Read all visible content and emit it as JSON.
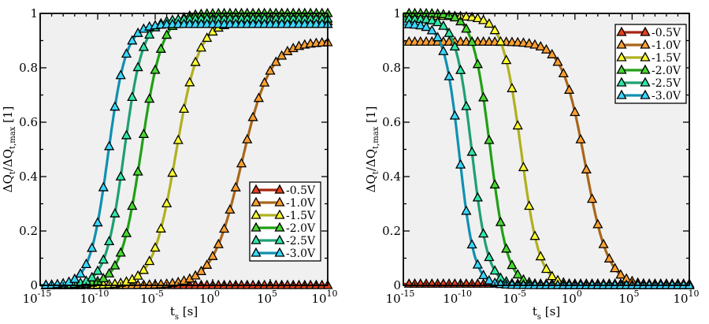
{
  "chart_data": [
    {
      "type": "line",
      "title": "",
      "xlabel": {
        "main": "t",
        "sub": "s",
        "unit": " [s]"
      },
      "ylabel": {
        "d1": "ΔQ",
        "s1": "t",
        "mid": "/ΔQ",
        "s2": "t,max",
        "unit": " [1]"
      },
      "xscale": "log",
      "xlim_log10": [
        -15,
        10
      ],
      "ylim": [
        0,
        1
      ],
      "xticks": [
        {
          "exp": "-15"
        },
        {
          "exp": "-10"
        },
        {
          "exp": "-5"
        },
        {
          "exp": "0"
        },
        {
          "exp": "5"
        },
        {
          "exp": "10"
        }
      ],
      "xtick_base": "10",
      "yticks": [
        "0",
        "0.2",
        "0.4",
        "0.6",
        "0.8",
        "1"
      ],
      "legend_position": "bottom-right",
      "curve": "rising logistic in log10(t): y = amplitude/(1+exp(-(log10 t - midpoint)/width))",
      "marker_step_log10": 0.5,
      "series": [
        {
          "name": "-0.5V",
          "amplitude": 0.005,
          "midpoint_log10_t": 20,
          "width_decades": 1.0,
          "marker": "#e8401a",
          "line": "#a82410"
        },
        {
          "name": "-1.0V",
          "amplitude": 0.895,
          "midpoint_log10_t": 2.5,
          "width_decades": 1.25,
          "marker": "#ffa030",
          "line": "#a8661a"
        },
        {
          "name": "-1.5V",
          "amplitude": 0.97,
          "midpoint_log10_t": -3.2,
          "width_decades": 1.0,
          "marker": "#ffff30",
          "line": "#b0b020"
        },
        {
          "name": "-2.0V",
          "amplitude": 1.0,
          "midpoint_log10_t": -6.2,
          "width_decades": 0.9,
          "marker": "#48d830",
          "line": "#20a014"
        },
        {
          "name": "-2.5V",
          "amplitude": 0.98,
          "midpoint_log10_t": -7.7,
          "width_decades": 0.8,
          "marker": "#30e8a8",
          "line": "#1ea070"
        },
        {
          "name": "-3.0V",
          "amplitude": 0.96,
          "midpoint_log10_t": -9.1,
          "width_decades": 0.78,
          "marker": "#38d8ff",
          "line": "#1090b0"
        }
      ]
    },
    {
      "type": "line",
      "title": "",
      "xlabel": {
        "main": "t",
        "sub": "s",
        "unit": " [s]"
      },
      "ylabel": {
        "d1": "ΔQ",
        "s1": "t",
        "mid": "/ΔQ",
        "s2": "t,max",
        "unit": " [1]"
      },
      "xscale": "log",
      "xlim_log10": [
        -15,
        10
      ],
      "ylim": [
        0,
        1
      ],
      "xticks": [
        {
          "exp": "-15"
        },
        {
          "exp": "-10"
        },
        {
          "exp": "-5"
        },
        {
          "exp": "0"
        },
        {
          "exp": "5"
        },
        {
          "exp": "10"
        }
      ],
      "xtick_base": "10",
      "yticks": [
        "0",
        "0.2",
        "0.4",
        "0.6",
        "0.8",
        "1"
      ],
      "legend_position": "top-right",
      "curve": "falling logistic in log10(t): y = amplitude/(1+exp((log10 t - midpoint)/width))",
      "marker_step_log10": 0.5,
      "series": [
        {
          "name": "-0.5V",
          "amplitude": 0.005,
          "midpoint_log10_t": 30,
          "width_decades": 1.0,
          "marker": "#e8401a",
          "line": "#a82410"
        },
        {
          "name": "-1.0V",
          "amplitude": 0.895,
          "midpoint_log10_t": 0.9,
          "width_decades": 1.0,
          "marker": "#ffa030",
          "line": "#a8661a"
        },
        {
          "name": "-1.5V",
          "amplitude": 0.99,
          "midpoint_log10_t": -4.7,
          "width_decades": 0.8,
          "marker": "#ffff30",
          "line": "#b0b020"
        },
        {
          "name": "-2.0V",
          "amplitude": 1.0,
          "midpoint_log10_t": -7.4,
          "width_decades": 0.75,
          "marker": "#48d830",
          "line": "#20a014"
        },
        {
          "name": "-2.5V",
          "amplitude": 0.98,
          "midpoint_log10_t": -9.0,
          "width_decades": 0.7,
          "marker": "#30e8a8",
          "line": "#1ea070"
        },
        {
          "name": "-3.0V",
          "amplitude": 0.96,
          "midpoint_log10_t": -10.1,
          "width_decades": 0.65,
          "marker": "#38d8ff",
          "line": "#1090b0"
        }
      ]
    }
  ]
}
